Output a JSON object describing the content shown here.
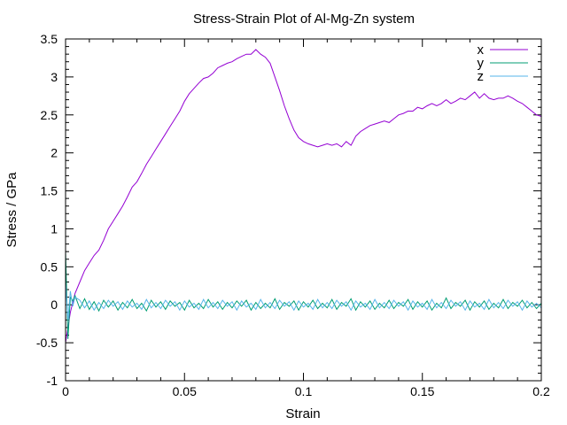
{
  "chart_data": {
    "type": "line",
    "title": "Stress-Strain Plot of Al-Mg-Zn system",
    "xlabel": "Strain",
    "ylabel": "Stress / GPa",
    "xlim": [
      0,
      0.2
    ],
    "ylim": [
      -1,
      3.5
    ],
    "xticks": [
      0,
      0.05,
      0.1,
      0.15,
      0.2
    ],
    "xtick_labels": [
      "0",
      "0.05",
      "0.1",
      "0.15",
      "0.2"
    ],
    "yticks": [
      -1,
      -0.5,
      0,
      0.5,
      1,
      1.5,
      2,
      2.5,
      3,
      3.5
    ],
    "ytick_labels": [
      "-1",
      "-0.5",
      "0",
      "0.5",
      "1",
      "1.5",
      "2",
      "2.5",
      "3",
      "3.5"
    ],
    "grid": false,
    "legend_position": "top-right",
    "series": [
      {
        "name": "x",
        "color": "#9400d3",
        "x": [
          0,
          0.002,
          0.004,
          0.006,
          0.008,
          0.01,
          0.012,
          0.014,
          0.016,
          0.018,
          0.02,
          0.022,
          0.024,
          0.026,
          0.028,
          0.03,
          0.032,
          0.034,
          0.036,
          0.038,
          0.04,
          0.042,
          0.044,
          0.046,
          0.048,
          0.05,
          0.052,
          0.054,
          0.056,
          0.058,
          0.06,
          0.062,
          0.064,
          0.066,
          0.068,
          0.07,
          0.072,
          0.074,
          0.076,
          0.078,
          0.08,
          0.082,
          0.084,
          0.086,
          0.088,
          0.09,
          0.092,
          0.094,
          0.096,
          0.098,
          0.1,
          0.102,
          0.104,
          0.106,
          0.108,
          0.11,
          0.112,
          0.114,
          0.116,
          0.118,
          0.12,
          0.122,
          0.124,
          0.126,
          0.128,
          0.13,
          0.132,
          0.134,
          0.136,
          0.138,
          0.14,
          0.142,
          0.144,
          0.146,
          0.148,
          0.15,
          0.152,
          0.154,
          0.156,
          0.158,
          0.16,
          0.162,
          0.164,
          0.166,
          0.168,
          0.17,
          0.172,
          0.174,
          0.176,
          0.178,
          0.18,
          0.182,
          0.184,
          0.186,
          0.188,
          0.19,
          0.192,
          0.194,
          0.196,
          0.198,
          0.2
        ],
        "y": [
          -0.5,
          -0.1,
          0.15,
          0.3,
          0.45,
          0.55,
          0.65,
          0.72,
          0.85,
          1.0,
          1.1,
          1.2,
          1.3,
          1.42,
          1.55,
          1.62,
          1.73,
          1.85,
          1.95,
          2.05,
          2.15,
          2.25,
          2.35,
          2.45,
          2.55,
          2.68,
          2.78,
          2.85,
          2.92,
          2.98,
          3.0,
          3.05,
          3.12,
          3.15,
          3.18,
          3.2,
          3.24,
          3.27,
          3.3,
          3.3,
          3.36,
          3.3,
          3.26,
          3.18,
          3.0,
          2.82,
          2.62,
          2.45,
          2.3,
          2.2,
          2.15,
          2.12,
          2.1,
          2.08,
          2.1,
          2.12,
          2.1,
          2.12,
          2.08,
          2.15,
          2.1,
          2.22,
          2.28,
          2.32,
          2.36,
          2.38,
          2.4,
          2.42,
          2.4,
          2.45,
          2.5,
          2.52,
          2.55,
          2.55,
          2.6,
          2.58,
          2.62,
          2.65,
          2.62,
          2.65,
          2.7,
          2.65,
          2.68,
          2.72,
          2.7,
          2.75,
          2.8,
          2.72,
          2.78,
          2.72,
          2.7,
          2.72,
          2.72,
          2.75,
          2.72,
          2.68,
          2.65,
          2.6,
          2.55,
          2.5,
          2.48
        ]
      },
      {
        "name": "y",
        "color": "#009e73",
        "x": [
          0,
          0.001,
          0.002,
          0.003,
          0.004,
          0.006,
          0.008,
          0.01,
          0.012,
          0.014,
          0.016,
          0.018,
          0.02,
          0.022,
          0.024,
          0.026,
          0.028,
          0.03,
          0.032,
          0.034,
          0.036,
          0.038,
          0.04,
          0.042,
          0.044,
          0.046,
          0.048,
          0.05,
          0.052,
          0.054,
          0.056,
          0.058,
          0.06,
          0.062,
          0.064,
          0.066,
          0.068,
          0.07,
          0.072,
          0.074,
          0.076,
          0.078,
          0.08,
          0.082,
          0.084,
          0.086,
          0.088,
          0.09,
          0.092,
          0.094,
          0.096,
          0.098,
          0.1,
          0.102,
          0.104,
          0.106,
          0.108,
          0.11,
          0.112,
          0.114,
          0.116,
          0.118,
          0.12,
          0.122,
          0.124,
          0.126,
          0.128,
          0.13,
          0.132,
          0.134,
          0.136,
          0.138,
          0.14,
          0.142,
          0.144,
          0.146,
          0.148,
          0.15,
          0.152,
          0.154,
          0.156,
          0.158,
          0.16,
          0.162,
          0.164,
          0.166,
          0.168,
          0.17,
          0.172,
          0.174,
          0.176,
          0.178,
          0.18,
          0.182,
          0.184,
          0.186,
          0.188,
          0.19,
          0.192,
          0.194,
          0.196,
          0.198,
          0.2
        ],
        "y": [
          0.7,
          -0.45,
          0.1,
          0.05,
          0.12,
          -0.05,
          0.08,
          -0.06,
          0.04,
          -0.08,
          0.06,
          -0.03,
          0.05,
          -0.07,
          0.03,
          -0.04,
          0.07,
          -0.05,
          0.02,
          -0.08,
          0.06,
          -0.03,
          0.04,
          -0.06,
          0.05,
          -0.02,
          0.03,
          -0.07,
          0.06,
          -0.04,
          0.02,
          -0.05,
          0.07,
          -0.03,
          0.04,
          -0.06,
          0.03,
          -0.04,
          0.05,
          -0.02,
          0.06,
          -0.07,
          0.03,
          -0.05,
          0.02,
          -0.04,
          0.08,
          -0.06,
          0.03,
          -0.02,
          0.05,
          -0.07,
          0.04,
          -0.03,
          0.06,
          -0.05,
          0.02,
          -0.04,
          0.07,
          -0.06,
          0.03,
          -0.02,
          0.08,
          -0.07,
          0.04,
          -0.03,
          0.05,
          -0.06,
          0.02,
          -0.04,
          0.06,
          -0.05,
          0.03,
          -0.02,
          0.07,
          -0.06,
          0.04,
          -0.03,
          0.05,
          -0.07,
          0.02,
          -0.04,
          0.09,
          -0.05,
          0.03,
          -0.02,
          0.06,
          -0.07,
          0.04,
          -0.03,
          0.05,
          -0.06,
          0.02,
          -0.04,
          0.07,
          -0.05,
          0.03,
          -0.02,
          0.06,
          -0.04,
          0.03,
          -0.05,
          0.02
        ]
      },
      {
        "name": "z",
        "color": "#56b4e9",
        "x": [
          0,
          0.001,
          0.002,
          0.003,
          0.004,
          0.006,
          0.008,
          0.01,
          0.012,
          0.014,
          0.016,
          0.018,
          0.02,
          0.022,
          0.024,
          0.026,
          0.028,
          0.03,
          0.032,
          0.034,
          0.036,
          0.038,
          0.04,
          0.042,
          0.044,
          0.046,
          0.048,
          0.05,
          0.052,
          0.054,
          0.056,
          0.058,
          0.06,
          0.062,
          0.064,
          0.066,
          0.068,
          0.07,
          0.072,
          0.074,
          0.076,
          0.078,
          0.08,
          0.082,
          0.084,
          0.086,
          0.088,
          0.09,
          0.092,
          0.094,
          0.096,
          0.098,
          0.1,
          0.102,
          0.104,
          0.106,
          0.108,
          0.11,
          0.112,
          0.114,
          0.116,
          0.118,
          0.12,
          0.122,
          0.124,
          0.126,
          0.128,
          0.13,
          0.132,
          0.134,
          0.136,
          0.138,
          0.14,
          0.142,
          0.144,
          0.146,
          0.148,
          0.15,
          0.152,
          0.154,
          0.156,
          0.158,
          0.16,
          0.162,
          0.164,
          0.166,
          0.168,
          0.17,
          0.172,
          0.174,
          0.176,
          0.178,
          0.18,
          0.182,
          0.184,
          0.186,
          0.188,
          0.19,
          0.192,
          0.194,
          0.196,
          0.198,
          0.2
        ],
        "y": [
          0.3,
          -0.2,
          0.18,
          -0.02,
          0.1,
          0.06,
          -0.04,
          0.05,
          -0.07,
          0.03,
          -0.05,
          0.06,
          -0.02,
          0.04,
          -0.06,
          0.05,
          -0.03,
          0.02,
          -0.06,
          0.07,
          -0.04,
          0.03,
          -0.05,
          0.06,
          -0.02,
          0.04,
          -0.07,
          0.05,
          -0.03,
          0.02,
          -0.06,
          0.07,
          -0.04,
          0.03,
          -0.05,
          0.06,
          -0.02,
          0.04,
          -0.07,
          0.05,
          -0.03,
          0.02,
          -0.06,
          0.07,
          -0.04,
          0.03,
          -0.05,
          0.06,
          -0.02,
          0.04,
          -0.07,
          0.05,
          -0.03,
          0.02,
          -0.06,
          0.07,
          -0.04,
          0.03,
          -0.05,
          0.06,
          -0.02,
          0.04,
          -0.07,
          0.05,
          -0.03,
          0.02,
          -0.06,
          0.07,
          -0.04,
          0.03,
          -0.05,
          0.06,
          -0.02,
          0.04,
          -0.07,
          0.05,
          -0.03,
          0.02,
          -0.06,
          0.07,
          -0.04,
          0.03,
          -0.05,
          0.06,
          -0.02,
          0.04,
          -0.07,
          0.05,
          -0.03,
          0.02,
          -0.06,
          0.07,
          -0.04,
          0.03,
          -0.05,
          0.06,
          -0.02,
          0.04,
          -0.07,
          0.05,
          -0.03,
          0.02,
          -0.04
        ]
      }
    ]
  }
}
